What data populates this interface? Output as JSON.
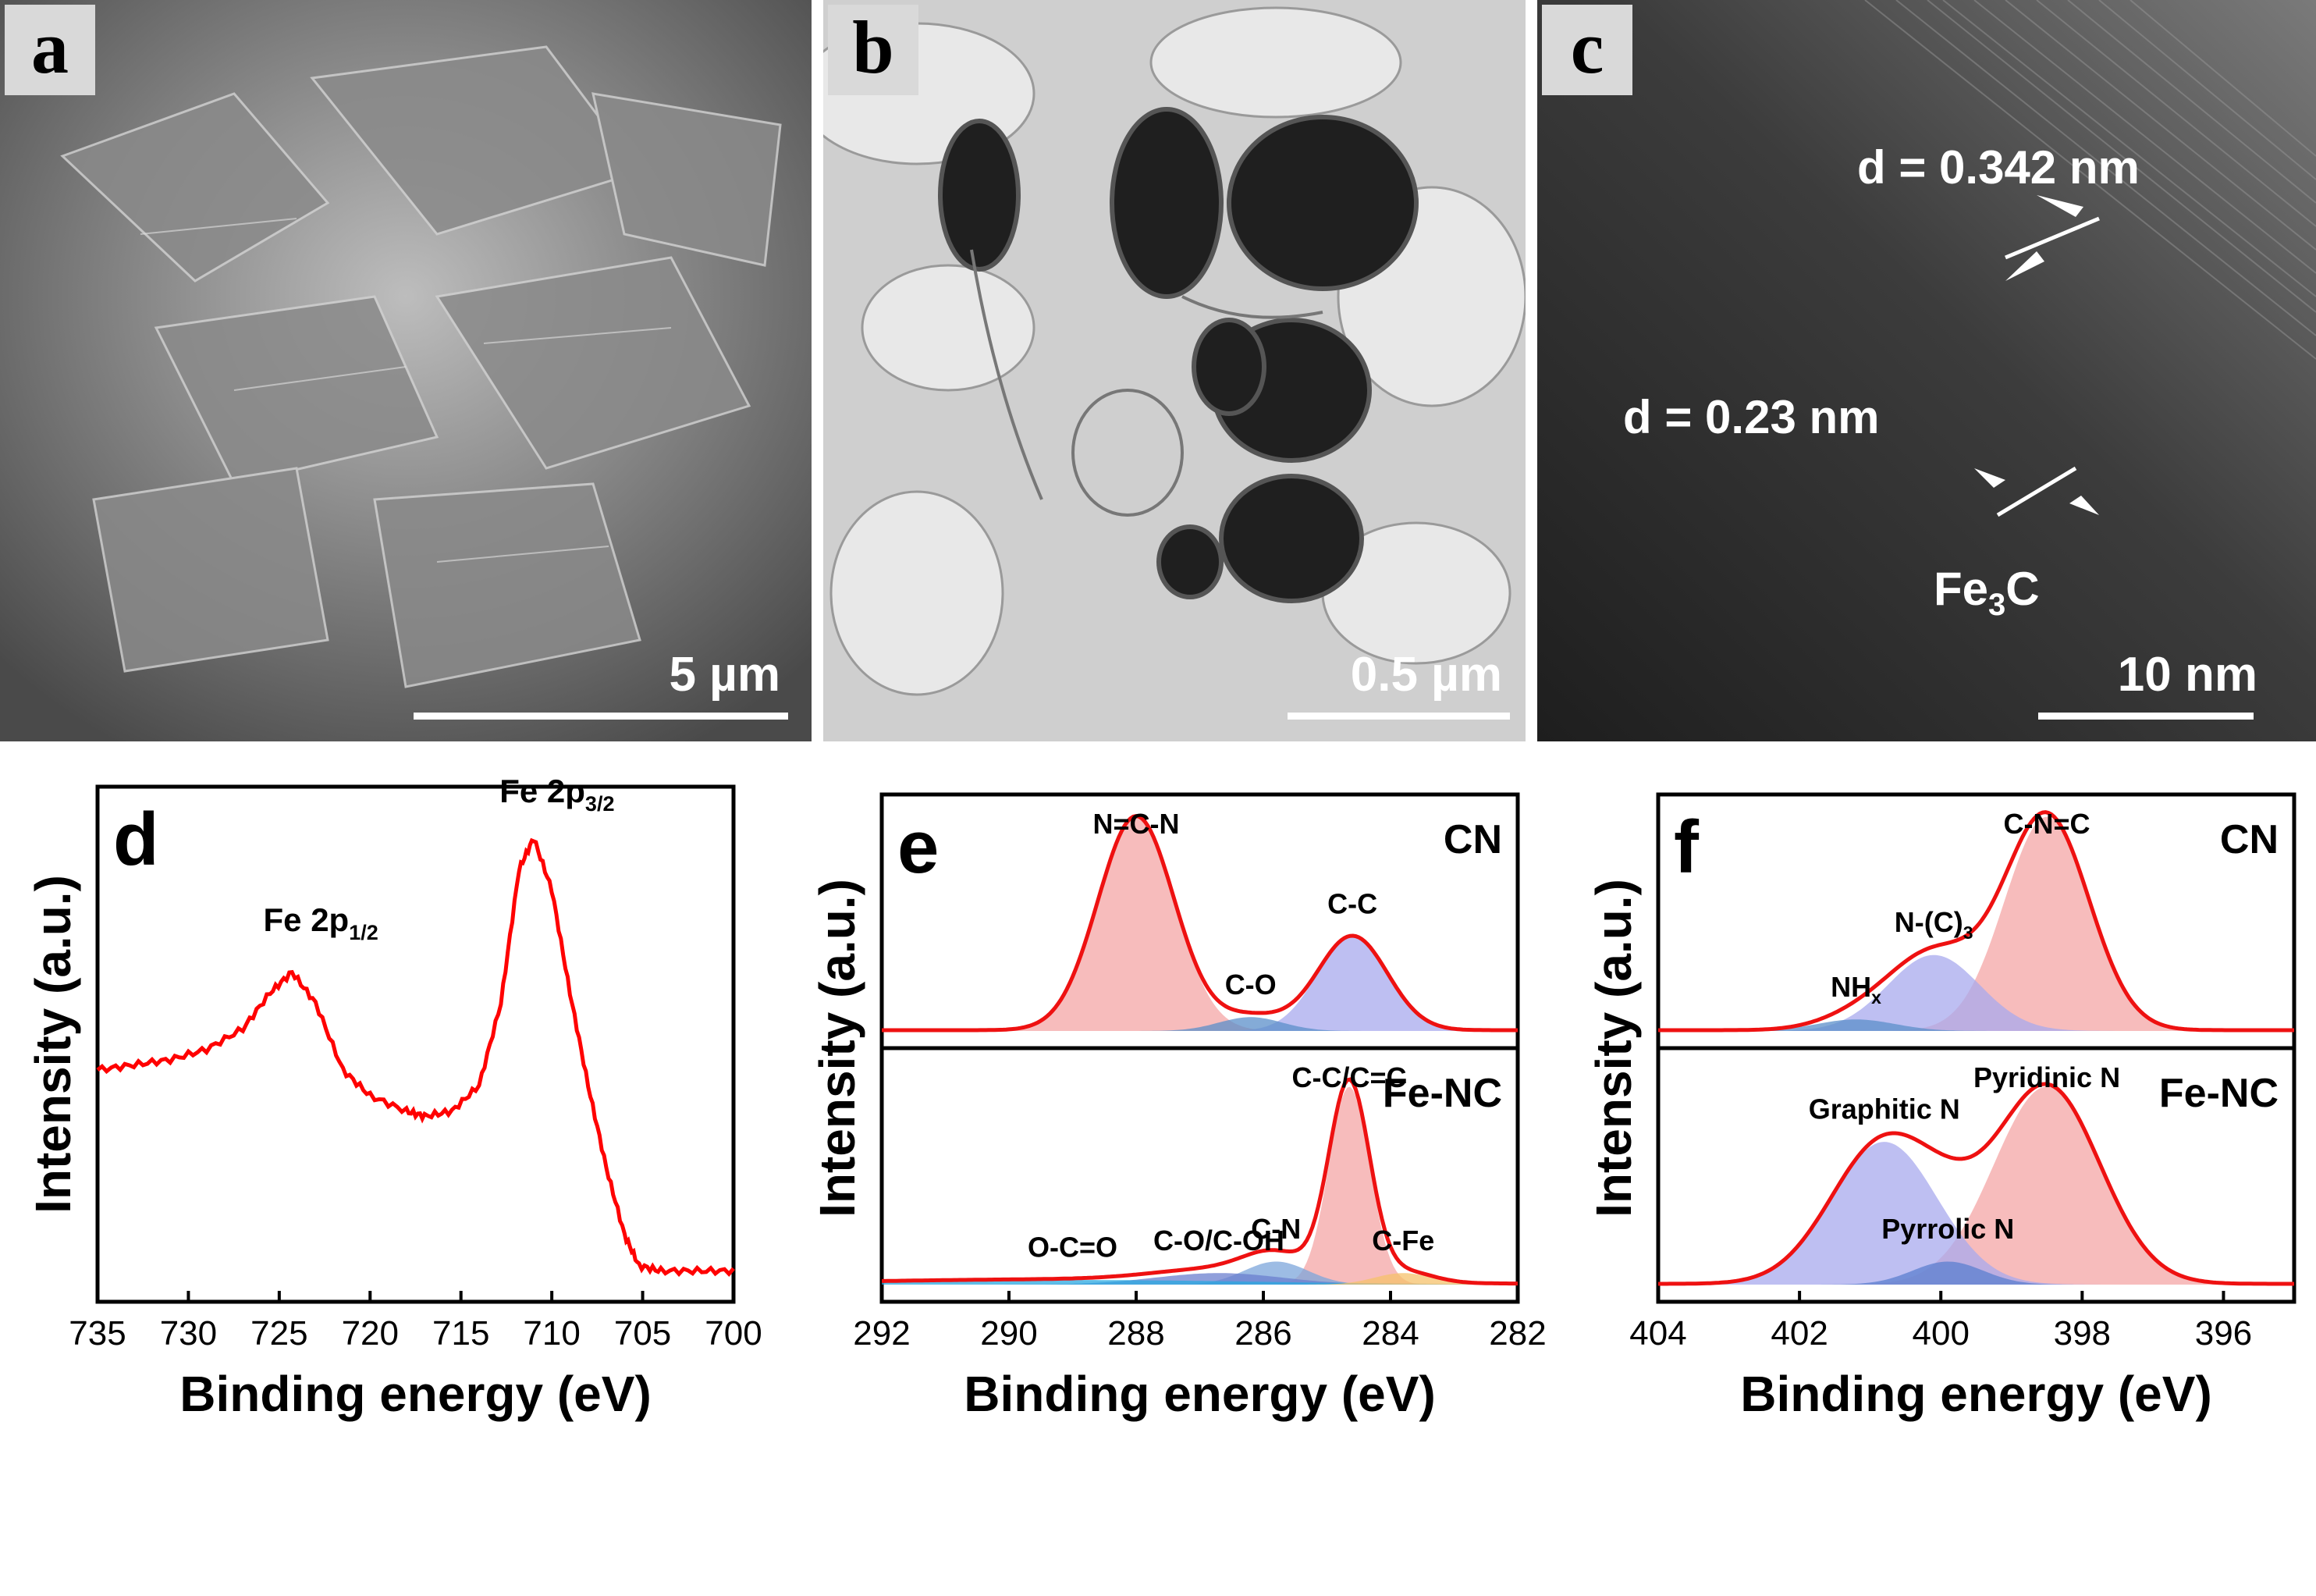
{
  "panels": {
    "a": {
      "tag": "a",
      "scale_bar": "5 µm"
    },
    "b": {
      "tag": "b",
      "scale_bar": "0.5 µm"
    },
    "c": {
      "tag": "c",
      "scale_bar": "10 nm",
      "d1": "d = 0.342 nm",
      "d2": "d = 0.23 nm",
      "phase_main": "Fe",
      "phase_sub": "3",
      "phase_tail": "C"
    },
    "d": {
      "tag": "d"
    },
    "e": {
      "tag": "e"
    },
    "f": {
      "tag": "f"
    }
  },
  "chart_data": [
    {
      "id": "d",
      "type": "line",
      "xlabel": "Binding energy (eV)",
      "ylabel": "Intensity (a.u.)",
      "xlim": [
        735,
        700
      ],
      "x_ticks": [
        735,
        730,
        725,
        720,
        715,
        710,
        705,
        700
      ],
      "line_color": "#ff0000",
      "annotations": [
        {
          "main": "Fe 2p",
          "sub": "1/2",
          "x": 724
        },
        {
          "main": "Fe 2p",
          "sub": "3/2",
          "x": 711
        }
      ],
      "series": [
        {
          "values": [
            [
              735,
              0.45
            ],
            [
              733,
              0.46
            ],
            [
              731,
              0.47
            ],
            [
              729,
              0.49
            ],
            [
              727,
              0.53
            ],
            [
              725.5,
              0.6
            ],
            [
              724.3,
              0.64
            ],
            [
              723,
              0.58
            ],
            [
              721.5,
              0.45
            ],
            [
              720,
              0.4
            ],
            [
              718,
              0.37
            ],
            [
              717,
              0.36
            ],
            [
              715.5,
              0.37
            ],
            [
              714,
              0.42
            ],
            [
              712.8,
              0.58
            ],
            [
              711.8,
              0.84
            ],
            [
              711,
              0.9
            ],
            [
              710,
              0.8
            ],
            [
              709,
              0.6
            ],
            [
              708,
              0.42
            ],
            [
              707,
              0.26
            ],
            [
              706,
              0.13
            ],
            [
              705.2,
              0.07
            ],
            [
              704,
              0.06
            ],
            [
              702,
              0.06
            ],
            [
              700,
              0.06
            ]
          ]
        }
      ]
    },
    {
      "id": "e",
      "type": "area",
      "xlabel": "Binding energy (eV)",
      "ylabel": "Intensity (a.u.)",
      "xlim": [
        292,
        282
      ],
      "x_ticks": [
        292,
        290,
        288,
        286,
        284,
        282
      ],
      "subplots": [
        {
          "sample": "CN",
          "components": [
            {
              "name": "N=C-N",
              "center": 288.0,
              "height": 0.93,
              "width": 0.6,
              "color": "#f4a6a6"
            },
            {
              "name": "C-C",
              "center": 284.6,
              "height": 0.41,
              "width": 0.55,
              "color": "#a8aaee"
            },
            {
              "name": "C-O",
              "center": 286.2,
              "height": 0.06,
              "width": 0.5,
              "color": "#5b8fc9"
            }
          ]
        },
        {
          "sample": "Fe-NC",
          "components": [
            {
              "name": "C-C/C=C",
              "center": 284.65,
              "height": 0.86,
              "width": 0.32,
              "color": "#f4a6a6"
            },
            {
              "name": "C-N",
              "center": 285.8,
              "height": 0.1,
              "width": 0.5,
              "color": "#7ca6db"
            },
            {
              "name": "C-O/C-OH",
              "center": 286.7,
              "height": 0.05,
              "width": 1.0,
              "color": "#6b7fcf"
            },
            {
              "name": "O-C=O",
              "center": 289.0,
              "height": 0.02,
              "width": 3.0,
              "color": "#2aa8e0"
            },
            {
              "name": "C-Fe",
              "center": 283.8,
              "height": 0.05,
              "width": 0.45,
              "color": "#f5c26b"
            }
          ]
        }
      ]
    },
    {
      "id": "f",
      "type": "area",
      "xlabel": "Binding energy (eV)",
      "ylabel": "Intensity (a.u.)",
      "xlim": [
        404,
        395
      ],
      "x_ticks": [
        404,
        402,
        400,
        398,
        396
      ],
      "subplots": [
        {
          "sample": "CN",
          "components": [
            {
              "name": "C-N=C",
              "center": 398.5,
              "height": 0.93,
              "width": 0.6,
              "color": "#f4a6a6"
            },
            {
              "name": "N-(C)3",
              "label_main": "N-(C)",
              "label_sub": "3",
              "center": 400.1,
              "height": 0.33,
              "width": 0.65,
              "color": "#a8aaee"
            },
            {
              "name": "NHx",
              "label_main": "NH",
              "label_sub": "x",
              "center": 401.2,
              "height": 0.05,
              "width": 0.55,
              "color": "#5b8fc9"
            }
          ]
        },
        {
          "sample": "Fe-NC",
          "components": [
            {
              "name": "Pyridinic N",
              "center": 398.5,
              "height": 0.86,
              "width": 0.75,
              "color": "#f4a6a6"
            },
            {
              "name": "Graphitic N",
              "center": 400.8,
              "height": 0.62,
              "width": 0.75,
              "color": "#a8aaee"
            },
            {
              "name": "Pyrrolic N",
              "center": 399.9,
              "height": 0.1,
              "width": 0.5,
              "color": "#5b7fcf"
            }
          ]
        }
      ]
    }
  ]
}
